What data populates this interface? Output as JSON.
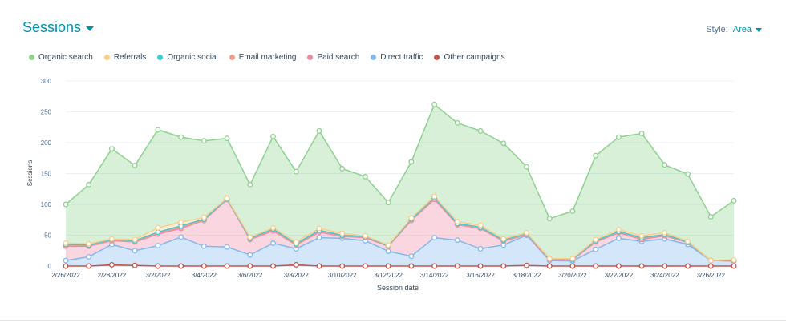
{
  "header": {
    "title": "Sessions",
    "style_label": "Style:",
    "style_value": "Area"
  },
  "colors": {
    "organic_search": "#8fd18f",
    "referrals": "#f8cf8c",
    "organic_social": "#44c8d4",
    "email_marketing": "#f29e8e",
    "paid_search": "#ee8aa6",
    "direct_traffic": "#84b8ee",
    "other_campaigns": "#c0554a"
  },
  "chart_data": {
    "type": "area",
    "stacked": true,
    "xlabel": "Session date",
    "ylabel": "Sessions",
    "ylim": [
      0,
      300
    ],
    "yticks": [
      0,
      50,
      100,
      150,
      200,
      250,
      300
    ],
    "grid": true,
    "legend_position": "top-left",
    "x": [
      "2/26/2022",
      "2/27/2022",
      "2/28/2022",
      "3/1/2022",
      "3/2/2022",
      "3/3/2022",
      "3/4/2022",
      "3/5/2022",
      "3/6/2022",
      "3/7/2022",
      "3/8/2022",
      "3/9/2022",
      "3/10/2022",
      "3/11/2022",
      "3/12/2022",
      "3/13/2022",
      "3/14/2022",
      "3/15/2022",
      "3/16/2022",
      "3/17/2022",
      "3/18/2022",
      "3/19/2022",
      "3/20/2022",
      "3/21/2022",
      "3/22/2022",
      "3/23/2022",
      "3/24/2022",
      "3/25/2022",
      "3/26/2022",
      "3/27/2022"
    ],
    "xtick_labels": [
      "2/26/2022",
      "2/28/2022",
      "3/2/2022",
      "3/4/2022",
      "3/6/2022",
      "3/8/2022",
      "3/10/2022",
      "3/12/2022",
      "3/14/2022",
      "3/16/2022",
      "3/18/2022",
      "3/20/2022",
      "3/22/2022",
      "3/24/2022",
      "3/26/2022"
    ],
    "series": [
      {
        "name": "Organic search",
        "key": "organic_search",
        "values": [
          63,
          96,
          146,
          120,
          159,
          138,
          124,
          97,
          85,
          148,
          114,
          158,
          105,
          96,
          69,
          91,
          149,
          160,
          153,
          155,
          107,
          65,
          77,
          136,
          150,
          166,
          110,
          109,
          71,
          96
        ]
      },
      {
        "name": "Referrals",
        "key": "referrals",
        "values": [
          2,
          2,
          1,
          2,
          7,
          6,
          3,
          1,
          2,
          2,
          3,
          3,
          3,
          1,
          1,
          2,
          2,
          3,
          3,
          2,
          1,
          0,
          1,
          2,
          3,
          3,
          3,
          1,
          0,
          1
        ]
      },
      {
        "name": "Organic social",
        "key": "organic_social",
        "values": [
          1,
          1,
          1,
          1,
          1,
          2,
          1,
          0,
          1,
          1,
          1,
          1,
          1,
          1,
          0,
          1,
          1,
          1,
          1,
          1,
          1,
          0,
          0,
          1,
          1,
          1,
          1,
          0,
          0,
          0
        ]
      },
      {
        "name": "Email marketing",
        "key": "email_marketing",
        "values": [
          2,
          1,
          1,
          1,
          2,
          2,
          1,
          1,
          1,
          2,
          1,
          2,
          1,
          1,
          1,
          1,
          2,
          1,
          1,
          1,
          1,
          1,
          1,
          1,
          1,
          2,
          1,
          1,
          0,
          1
        ]
      },
      {
        "name": "Paid search",
        "key": "paid_search",
        "values": [
          23,
          17,
          6,
          14,
          19,
          14,
          42,
          77,
          25,
          20,
          6,
          9,
          3,
          5,
          8,
          58,
          62,
          25,
          33,
          6,
          1,
          2,
          2,
          12,
          9,
          3,
          5,
          3,
          0,
          0
        ]
      },
      {
        "name": "Direct traffic",
        "key": "direct_traffic",
        "values": [
          9,
          15,
          33,
          24,
          33,
          47,
          32,
          31,
          18,
          37,
          26,
          46,
          45,
          41,
          24,
          16,
          46,
          42,
          28,
          34,
          49,
          9,
          8,
          27,
          45,
          40,
          44,
          35,
          9,
          8
        ]
      },
      {
        "name": "Other campaigns",
        "key": "other_campaigns",
        "values": [
          0,
          0,
          2,
          1,
          0,
          0,
          0,
          0,
          0,
          0,
          2,
          0,
          0,
          0,
          0,
          0,
          0,
          0,
          0,
          0,
          1,
          0,
          0,
          0,
          0,
          0,
          0,
          0,
          0,
          0
        ]
      }
    ]
  }
}
